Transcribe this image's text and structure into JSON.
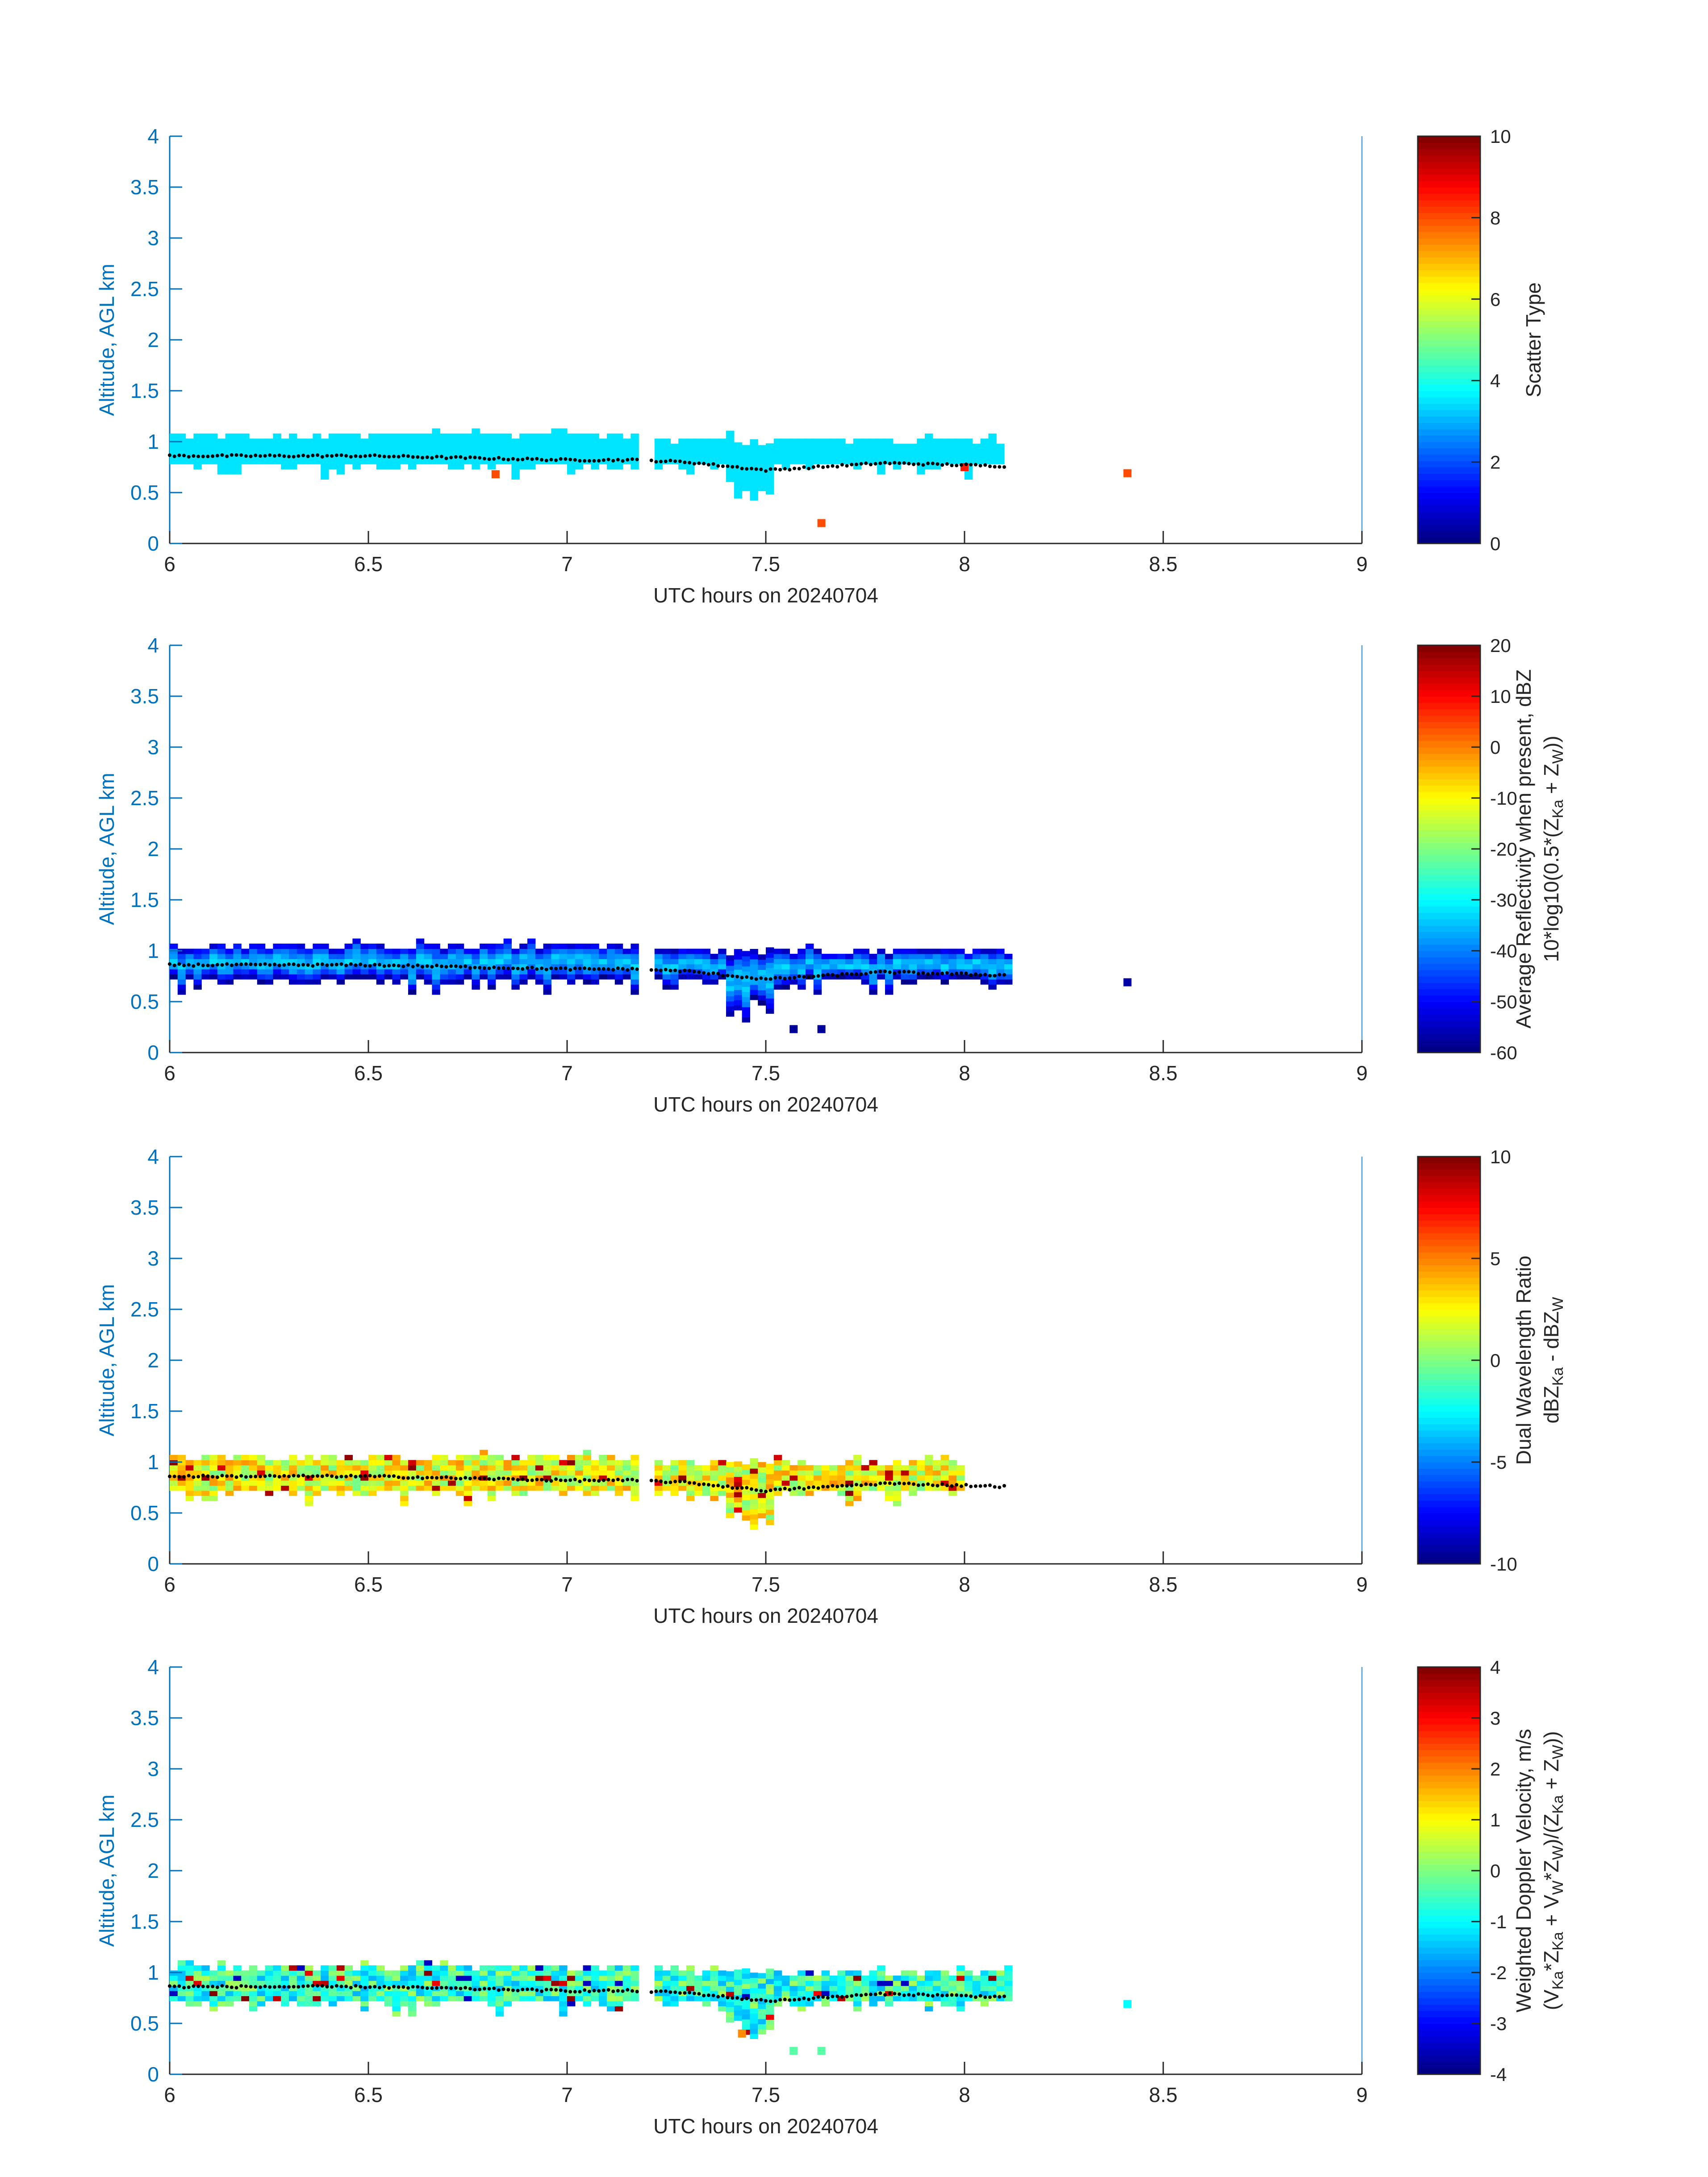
{
  "colors": {
    "axis": "#0072bd",
    "text": "#262626",
    "cloud_top_dots": "#000000"
  },
  "chart_data": [
    {
      "type": "heatmap",
      "title": "",
      "xlabel": "UTC hours on 20240704",
      "ylabel": "Altitude, AGL km",
      "xlim": [
        6,
        9
      ],
      "ylim": [
        0,
        4
      ],
      "xticks": [
        "6",
        "6.5",
        "7",
        "7.5",
        "8",
        "8.5",
        "9"
      ],
      "yticks": [
        "0",
        "0.5",
        "1",
        "1.5",
        "2",
        "2.5",
        "3",
        "3.5",
        "4"
      ],
      "colorbar": {
        "label_lines": [
          "Scatter Type"
        ],
        "range": [
          0,
          10
        ],
        "ticks": [
          "0",
          "2",
          "4",
          "6",
          "8",
          "10"
        ],
        "colormap": "jet"
      },
      "layer": {
        "base_km": 0.78,
        "top_km": 1.07,
        "dominant_value": 3.5,
        "x_start": 6.0,
        "x_end": 8.08,
        "gap": [
          7.17,
          7.21
        ]
      },
      "isolated_points": [
        {
          "x": 6.82,
          "y": 0.68,
          "value": 8.0
        },
        {
          "x": 7.64,
          "y": 0.2,
          "value": 8.0
        },
        {
          "x": 8.41,
          "y": 0.69,
          "value": 8.0
        },
        {
          "x": 8.0,
          "y": 0.75,
          "value": 8.5
        }
      ],
      "cloud_top_line": {
        "x": [
          6.0,
          6.5,
          7.0,
          7.17,
          7.3,
          7.5,
          7.8,
          8.1
        ],
        "y": [
          0.86,
          0.86,
          0.82,
          0.82,
          0.8,
          0.72,
          0.79,
          0.76
        ]
      }
    },
    {
      "type": "heatmap",
      "title": "",
      "xlabel": "UTC hours on 20240704",
      "ylabel": "Altitude, AGL km",
      "xlim": [
        6,
        9
      ],
      "ylim": [
        0,
        4
      ],
      "xticks": [
        "6",
        "6.5",
        "7",
        "7.5",
        "8",
        "8.5",
        "9"
      ],
      "yticks": [
        "0",
        "0.5",
        "1",
        "1.5",
        "2",
        "2.5",
        "3",
        "3.5",
        "4"
      ],
      "colorbar": {
        "label_lines": [
          "Average Reflectivity when present, dBZ",
          "10*log10(0.5*(Z",
          "Ka",
          " + Z",
          "W",
          "))"
        ],
        "range": [
          -60,
          20
        ],
        "ticks": [
          "-60",
          "-50",
          "-40",
          "-30",
          "-20",
          "-10",
          "0",
          "10",
          "20"
        ],
        "colormap": "jet"
      },
      "layer": {
        "base_km": 0.72,
        "top_km": 1.05,
        "core_value": -35,
        "edge_value": -57,
        "x_start": 6.0,
        "x_end": 8.1,
        "gap": [
          7.17,
          7.21
        ]
      },
      "isolated_points": [
        {
          "x": 7.57,
          "y": 0.23,
          "value": -58
        },
        {
          "x": 7.64,
          "y": 0.23,
          "value": -58
        },
        {
          "x": 8.41,
          "y": 0.69,
          "value": -57
        }
      ],
      "cloud_top_line": {
        "x": [
          6.0,
          6.5,
          7.0,
          7.17,
          7.3,
          7.5,
          7.8,
          8.1
        ],
        "y": [
          0.86,
          0.86,
          0.82,
          0.82,
          0.8,
          0.72,
          0.79,
          0.76
        ]
      }
    },
    {
      "type": "heatmap",
      "title": "",
      "xlabel": "UTC hours on 20240704",
      "ylabel": "Altitude, AGL km",
      "xlim": [
        6,
        9
      ],
      "ylim": [
        0,
        4
      ],
      "xticks": [
        "6",
        "6.5",
        "7",
        "7.5",
        "8",
        "8.5",
        "9"
      ],
      "yticks": [
        "0",
        "0.5",
        "1",
        "1.5",
        "2",
        "2.5",
        "3",
        "3.5",
        "4"
      ],
      "colorbar": {
        "label_lines": [
          "Dual Wavelength Ratio",
          "dBZ",
          "Ka",
          " - dBZ",
          "W"
        ],
        "range": [
          -10,
          10
        ],
        "ticks": [
          "-10",
          "-5",
          "0",
          "5",
          "10"
        ],
        "colormap": "jet"
      },
      "layer": {
        "base_km": 0.72,
        "top_km": 1.05,
        "dominant_value": 2.2,
        "x_start": 6.0,
        "x_end": 7.98,
        "gap": [
          7.17,
          7.21
        ]
      },
      "isolated_points": [],
      "cloud_top_line": {
        "x": [
          6.0,
          6.5,
          7.0,
          7.17,
          7.3,
          7.5,
          7.8,
          8.1
        ],
        "y": [
          0.86,
          0.86,
          0.82,
          0.82,
          0.8,
          0.72,
          0.79,
          0.76
        ]
      }
    },
    {
      "type": "heatmap",
      "title": "",
      "xlabel": "UTC hours on 20240704",
      "ylabel": "Altitude, AGL km",
      "xlim": [
        6,
        9
      ],
      "ylim": [
        0,
        4
      ],
      "xticks": [
        "6",
        "6.5",
        "7",
        "7.5",
        "8",
        "8.5",
        "9"
      ],
      "yticks": [
        "0",
        "0.5",
        "1",
        "1.5",
        "2",
        "2.5",
        "3",
        "3.5",
        "4"
      ],
      "colorbar": {
        "label_lines": [
          "Weighted Doppler Velocity, m/s",
          "(V",
          "Ka",
          "*Z",
          "Ka",
          " + V",
          "W",
          "*Z",
          "W",
          ")/(Z",
          "Ka",
          " + Z",
          "W",
          "))"
        ],
        "range": [
          -4,
          4
        ],
        "ticks": [
          "-4",
          "-3",
          "-2",
          "-1",
          "0",
          "1",
          "2",
          "3",
          "4"
        ],
        "colormap": "jet"
      },
      "layer": {
        "base_km": 0.72,
        "top_km": 1.07,
        "dominant_value": -0.6,
        "x_start": 6.0,
        "x_end": 8.1,
        "gap": [
          7.17,
          7.21
        ]
      },
      "isolated_points": [
        {
          "x": 7.44,
          "y": 0.4,
          "value": 1.9
        },
        {
          "x": 7.57,
          "y": 0.23,
          "value": -0.3
        },
        {
          "x": 7.64,
          "y": 0.23,
          "value": -0.3
        },
        {
          "x": 8.41,
          "y": 0.69,
          "value": -1.0
        }
      ],
      "cloud_top_line": {
        "x": [
          6.0,
          6.5,
          7.0,
          7.17,
          7.3,
          7.5,
          7.8,
          8.1
        ],
        "y": [
          0.86,
          0.86,
          0.82,
          0.82,
          0.8,
          0.72,
          0.79,
          0.76
        ]
      }
    }
  ]
}
